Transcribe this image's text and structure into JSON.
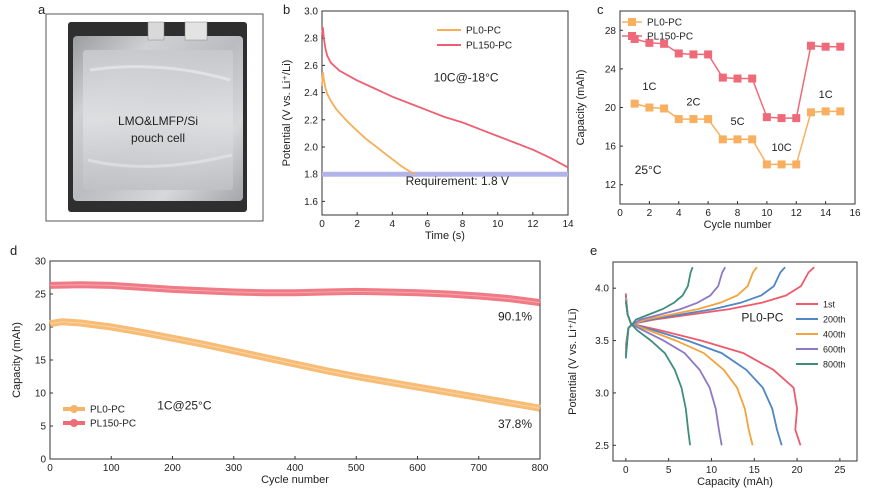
{
  "chart_data": [
    {
      "panel": "a",
      "type": "photo",
      "caption_lines": [
        "LMO&LMFP/Si",
        "pouch cell"
      ]
    },
    {
      "panel": "b",
      "type": "line",
      "xlabel": "Time (s)",
      "ylabel": "Potential (V vs. Li⁺/Li)",
      "xlim": [
        0,
        14
      ],
      "ylim": [
        1.5,
        3.0
      ],
      "xticks": [
        0,
        2,
        4,
        6,
        8,
        10,
        12,
        14
      ],
      "yticks": [
        1.6,
        1.8,
        2.0,
        2.2,
        2.4,
        2.6,
        2.8,
        3.0
      ],
      "annotation": "10C@-18°C",
      "reference_line": {
        "y": 1.8,
        "label": "Requirement: 1.8 V"
      },
      "legend_position": "top-right",
      "series": [
        {
          "name": "PL0-PC",
          "color": "#f6ae58",
          "x": [
            0,
            0.05,
            0.1,
            0.2,
            0.3,
            0.5,
            0.8,
            1.0,
            1.5,
            2.0,
            2.5,
            3.0,
            3.5,
            4.0,
            4.5,
            5.0,
            5.3
          ],
          "y": [
            2.45,
            2.55,
            2.5,
            2.43,
            2.39,
            2.34,
            2.28,
            2.25,
            2.18,
            2.12,
            2.06,
            2.01,
            1.96,
            1.91,
            1.86,
            1.82,
            1.8
          ]
        },
        {
          "name": "PL150-PC",
          "color": "#ef5f72",
          "x": [
            0,
            0.05,
            0.1,
            0.2,
            0.3,
            0.5,
            1,
            2,
            3,
            4,
            5,
            6,
            7,
            8,
            9,
            10,
            11,
            12,
            13,
            14
          ],
          "y": [
            2.82,
            2.88,
            2.8,
            2.72,
            2.67,
            2.62,
            2.56,
            2.49,
            2.43,
            2.37,
            2.32,
            2.27,
            2.22,
            2.18,
            2.13,
            2.08,
            2.03,
            1.98,
            1.92,
            1.85
          ]
        }
      ]
    },
    {
      "panel": "c",
      "type": "line",
      "xlabel": "Cycle number",
      "ylabel": "Capacity (mAh)",
      "xlim": [
        0,
        16
      ],
      "ylim": [
        10,
        30
      ],
      "xticks": [
        0,
        2,
        4,
        6,
        8,
        10,
        12,
        14,
        16
      ],
      "yticks": [
        12,
        16,
        20,
        24,
        28
      ],
      "annotation": "25°C",
      "rate_labels": [
        {
          "text": "1C",
          "x": 2,
          "y": 21.8
        },
        {
          "text": "2C",
          "x": 5,
          "y": 20.2
        },
        {
          "text": "5C",
          "x": 8,
          "y": 18.2
        },
        {
          "text": "10C",
          "x": 11,
          "y": 15.5
        },
        {
          "text": "1C",
          "x": 14,
          "y": 21.0
        }
      ],
      "legend_position": "top-left",
      "x": [
        1,
        2,
        3,
        4,
        5,
        6,
        7,
        8,
        9,
        10,
        11,
        12,
        13,
        14,
        15
      ],
      "series": [
        {
          "name": "PL0-PC",
          "color": "#f8b060",
          "values": [
            20.4,
            20.0,
            19.9,
            18.8,
            18.8,
            18.8,
            16.7,
            16.7,
            16.7,
            14.1,
            14.1,
            14.1,
            19.5,
            19.6,
            19.6
          ]
        },
        {
          "name": "PL150-PC",
          "color": "#ee6a78",
          "values": [
            27.1,
            26.7,
            26.6,
            25.6,
            25.5,
            25.5,
            23.1,
            23.0,
            23.0,
            19.0,
            18.9,
            18.9,
            26.4,
            26.3,
            26.3
          ]
        }
      ]
    },
    {
      "panel": "d",
      "type": "line",
      "xlabel": "Cycle number",
      "ylabel": "Capacity (mAh)",
      "xlim": [
        0,
        800
      ],
      "ylim": [
        0,
        30
      ],
      "xticks": [
        0,
        100,
        200,
        300,
        400,
        500,
        600,
        700,
        800
      ],
      "yticks": [
        0,
        5,
        10,
        15,
        20,
        25,
        30
      ],
      "annotation": "1C@25°C",
      "legend_position": "bottom-left",
      "series": [
        {
          "name": "PL0-PC",
          "color": "#f6b566",
          "end_label": "37.8%",
          "x": [
            0,
            20,
            50,
            100,
            150,
            200,
            250,
            300,
            350,
            400,
            450,
            500,
            550,
            600,
            650,
            700,
            750,
            800
          ],
          "y": [
            20.5,
            20.8,
            20.6,
            20.0,
            19.2,
            18.3,
            17.4,
            16.4,
            15.4,
            14.4,
            13.4,
            12.5,
            11.7,
            10.9,
            10.1,
            9.3,
            8.5,
            7.7
          ]
        },
        {
          "name": "PL150-PC",
          "color": "#ee6b78",
          "end_label": "90.1%",
          "x": [
            0,
            50,
            100,
            150,
            200,
            250,
            300,
            350,
            400,
            450,
            500,
            550,
            600,
            650,
            700,
            750,
            800
          ],
          "y": [
            26.3,
            26.4,
            26.3,
            26.0,
            25.7,
            25.5,
            25.3,
            25.2,
            25.2,
            25.3,
            25.4,
            25.3,
            25.2,
            25.0,
            24.7,
            24.3,
            23.7
          ]
        }
      ]
    },
    {
      "panel": "e",
      "type": "line",
      "xlabel": "Capacity (mAh)",
      "ylabel": "Potential (V vs. Li⁺/Li)",
      "xlim": [
        -1.5,
        27
      ],
      "ylim": [
        2.35,
        4.25
      ],
      "xticks": [
        0,
        5,
        10,
        15,
        20,
        25
      ],
      "yticks": [
        2.5,
        3.0,
        3.5,
        4.0
      ],
      "annotation": "PL0-PC",
      "legend_position": "right",
      "series": [
        {
          "name": "1st",
          "color": "#ef5a6b",
          "charge_end": 22.0,
          "discharge_end": 20.4,
          "knee": 19.6
        },
        {
          "name": "200th",
          "color": "#4f86c6",
          "charge_end": 18.6,
          "discharge_end": 18.2,
          "knee": 16.0
        },
        {
          "name": "400th",
          "color": "#f3a33c",
          "charge_end": 15.3,
          "discharge_end": 14.8,
          "knee": 13.0
        },
        {
          "name": "600th",
          "color": "#8d79c6",
          "charge_end": 11.6,
          "discharge_end": 11.2,
          "knee": 9.8
        },
        {
          "name": "800th",
          "color": "#3e8e7e",
          "charge_end": 7.8,
          "discharge_end": 7.5,
          "knee": 6.5
        }
      ]
    }
  ]
}
